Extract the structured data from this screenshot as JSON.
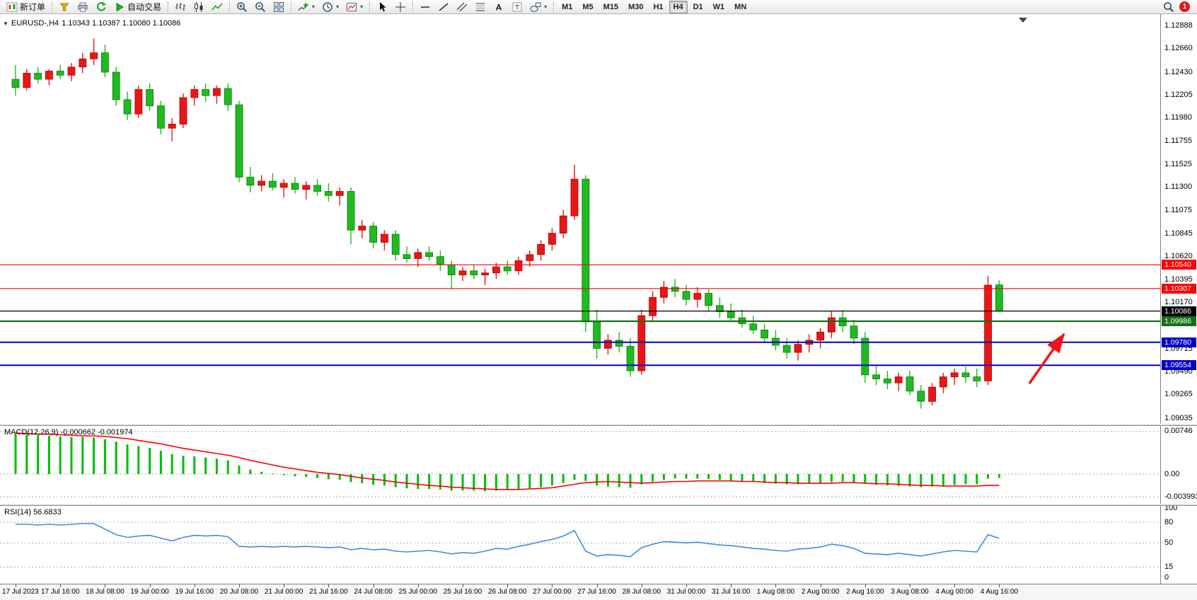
{
  "toolbar": {
    "items": [
      {
        "type": "button",
        "name": "new-order-button",
        "icon": "new-order-icon",
        "label": "新订单"
      },
      {
        "type": "sep"
      },
      {
        "type": "button",
        "name": "metaeditor-button",
        "icon": "metaeditor-icon"
      },
      {
        "type": "button",
        "name": "print-button",
        "icon": "print-icon"
      },
      {
        "type": "button",
        "name": "refresh-button",
        "icon": "refresh-icon"
      },
      {
        "type": "button",
        "name": "autotrading-button",
        "icon": "play-icon",
        "label": "自动交易"
      },
      {
        "type": "sep"
      },
      {
        "type": "button",
        "name": "bar-chart-button",
        "icon": "bar-chart-icon"
      },
      {
        "type": "button",
        "name": "candlestick-chart-button",
        "icon": "candlestick-icon"
      },
      {
        "type": "button",
        "name": "line-chart-button",
        "icon": "line-chart-icon"
      },
      {
        "type": "sep"
      },
      {
        "type": "button",
        "name": "zoom-in-button",
        "icon": "zoom-in-icon"
      },
      {
        "type": "button",
        "name": "zoom-out-button",
        "icon": "zoom-out-icon"
      },
      {
        "type": "button",
        "name": "tile-windows-button",
        "icon": "tile-windows-icon"
      },
      {
        "type": "sep"
      },
      {
        "type": "button",
        "name": "indicators-button",
        "icon": "indicators-icon",
        "caret": true
      },
      {
        "type": "button",
        "name": "periods-button",
        "icon": "clock-icon",
        "caret": true
      },
      {
        "type": "button",
        "name": "templates-button",
        "icon": "template-icon",
        "caret": true
      },
      {
        "type": "sep"
      },
      {
        "type": "button",
        "name": "cursor-button",
        "icon": "cursor-icon"
      },
      {
        "type": "button",
        "name": "crosshair-button",
        "icon": "crosshair-icon"
      },
      {
        "type": "sep"
      },
      {
        "type": "button",
        "name": "horizontal-line-button",
        "icon": "horizontal-line-icon"
      },
      {
        "type": "button",
        "name": "trendline-button",
        "icon": "trendline-icon"
      },
      {
        "type": "button",
        "name": "channel-button",
        "icon": "channel-icon"
      },
      {
        "type": "button",
        "name": "fibonacci-button",
        "icon": "fibonacci-icon"
      },
      {
        "type": "button",
        "name": "text-button",
        "icon": "text-a-icon"
      },
      {
        "type": "button",
        "name": "label-button",
        "icon": "text-t-icon"
      },
      {
        "type": "button",
        "name": "shapes-button",
        "icon": "shapes-icon",
        "caret": true
      },
      {
        "type": "sep"
      }
    ],
    "timeframes": [
      "M1",
      "M5",
      "M15",
      "M30",
      "H1",
      "H4",
      "D1",
      "W1",
      "MN"
    ],
    "active_timeframe": "H4",
    "notification_count": "1"
  },
  "chart": {
    "title_symbol": "EURUSD-,H4",
    "title_ohlc": "1.10343 1.10387 1.10080 1.10086"
  },
  "price_axis": {
    "ticks": [
      "1.12888",
      "1.12660",
      "1.12430",
      "1.12205",
      "1.11980",
      "1.11755",
      "1.11525",
      "1.11300",
      "1.11075",
      "1.10845",
      "1.10620",
      "1.10395",
      "1.10170",
      "1.09715",
      "1.09490",
      "1.09265",
      "1.09035"
    ]
  },
  "hlines": [
    {
      "price": 1.1054,
      "label": "1.10540",
      "color": "#FF0000",
      "width": 1.2
    },
    {
      "price": 1.10307,
      "label": "1.10307",
      "color": "#FF0000",
      "width": 1.2
    },
    {
      "price": 1.10086,
      "label": "1.10086",
      "color": "#000000",
      "width": 1.2
    },
    {
      "price": 1.09986,
      "label": "1.09986",
      "color": "#167016",
      "width": 2.2
    },
    {
      "price": 1.0978,
      "label": "1.09780",
      "color": "#0000C8",
      "width": 2
    },
    {
      "price": 1.09554,
      "label": "1.09554",
      "color": "#0000C8",
      "width": 2
    }
  ],
  "indicators": {
    "macd_label": "MACD(12,26,9) -0.000662 -0.001974",
    "macd_axis": [
      "0.00746",
      "0.00",
      "-0.003993"
    ],
    "rsi_label": "RSI(14) 56.6833",
    "rsi_axis": [
      "100",
      "80",
      "50",
      "15",
      "0"
    ],
    "rsi_levels": [
      80,
      50,
      15
    ]
  },
  "chart_data": {
    "type": "candlestick",
    "title": "EURUSD-,H4",
    "ohlc_current": {
      "open": 1.10343,
      "high": 1.10387,
      "low": 1.1008,
      "close": 1.10086
    },
    "up_color": "#E81717",
    "down_color": "#1FBB1F",
    "ylim": [
      1.09035,
      1.12888
    ],
    "bars_per_label": 4,
    "x_labels": [
      "17 Jul 2023",
      "17 Jul 16:00",
      "18 Jul 08:00",
      "19 Jul 00:00",
      "19 Jul 16:00",
      "20 Jul 08:00",
      "21 Jul 00:00",
      "21 Jul 16:00",
      "24 Jul 08:00",
      "25 Jul 00:00",
      "25 Jul 16:00",
      "26 Jul 08:00",
      "27 Jul 00:00",
      "27 Jul 16:00",
      "28 Jul 08:00",
      "31 Jul 00:00",
      "31 Jul 16:00",
      "1 Aug 08:00",
      "2 Aug 00:00",
      "2 Aug 16:00",
      "3 Aug 08:00",
      "4 Aug 00:00",
      "4 Aug 16:00"
    ],
    "ohlc": [
      [
        1.1236,
        1.125,
        1.122,
        1.1228
      ],
      [
        1.1228,
        1.1246,
        1.1225,
        1.1242
      ],
      [
        1.1242,
        1.1248,
        1.1232,
        1.1236
      ],
      [
        1.1236,
        1.1246,
        1.123,
        1.1244
      ],
      [
        1.1244,
        1.125,
        1.1236,
        1.124
      ],
      [
        1.124,
        1.1252,
        1.1234,
        1.1248
      ],
      [
        1.1248,
        1.1262,
        1.1242,
        1.1256
      ],
      [
        1.1256,
        1.1276,
        1.125,
        1.1262
      ],
      [
        1.1262,
        1.127,
        1.1238,
        1.1243
      ],
      [
        1.1243,
        1.1248,
        1.121,
        1.1216
      ],
      [
        1.1216,
        1.1224,
        1.1196,
        1.1202
      ],
      [
        1.1202,
        1.123,
        1.1198,
        1.1226
      ],
      [
        1.1226,
        1.1232,
        1.1205,
        1.121
      ],
      [
        1.121,
        1.1215,
        1.1182,
        1.1188
      ],
      [
        1.1188,
        1.1198,
        1.1175,
        1.1192
      ],
      [
        1.1192,
        1.1222,
        1.1188,
        1.1218
      ],
      [
        1.1218,
        1.123,
        1.121,
        1.1226
      ],
      [
        1.1226,
        1.1232,
        1.1214,
        1.122
      ],
      [
        1.122,
        1.123,
        1.1212,
        1.1227
      ],
      [
        1.1227,
        1.1232,
        1.1205,
        1.1211
      ],
      [
        1.1211,
        1.1215,
        1.1135,
        1.114
      ],
      [
        1.114,
        1.115,
        1.1125,
        1.1132
      ],
      [
        1.1132,
        1.1142,
        1.1126,
        1.1136
      ],
      [
        1.1136,
        1.1144,
        1.1127,
        1.113
      ],
      [
        1.113,
        1.1138,
        1.112,
        1.1134
      ],
      [
        1.1134,
        1.114,
        1.1124,
        1.1128
      ],
      [
        1.1128,
        1.1136,
        1.1118,
        1.1132
      ],
      [
        1.1132,
        1.1138,
        1.1122,
        1.1126
      ],
      [
        1.1126,
        1.1134,
        1.1116,
        1.1122
      ],
      [
        1.1122,
        1.113,
        1.1112,
        1.1126
      ],
      [
        1.1126,
        1.113,
        1.1074,
        1.1088
      ],
      [
        1.1088,
        1.1098,
        1.108,
        1.1092
      ],
      [
        1.1092,
        1.1096,
        1.107,
        1.1076
      ],
      [
        1.1076,
        1.1088,
        1.1068,
        1.1084
      ],
      [
        1.1084,
        1.1088,
        1.1058,
        1.1064
      ],
      [
        1.1064,
        1.1072,
        1.1056,
        1.106
      ],
      [
        1.106,
        1.107,
        1.1052,
        1.1066
      ],
      [
        1.1066,
        1.1072,
        1.1058,
        1.1062
      ],
      [
        1.1062,
        1.1068,
        1.1048,
        1.1054
      ],
      [
        1.1054,
        1.1058,
        1.103,
        1.1044
      ],
      [
        1.1044,
        1.1052,
        1.1038,
        1.1048
      ],
      [
        1.1048,
        1.1054,
        1.104,
        1.1044
      ],
      [
        1.1044,
        1.105,
        1.1034,
        1.1046
      ],
      [
        1.1046,
        1.1056,
        1.104,
        1.1052
      ],
      [
        1.1052,
        1.1058,
        1.1044,
        1.1048
      ],
      [
        1.1048,
        1.1062,
        1.1044,
        1.1058
      ],
      [
        1.1058,
        1.1068,
        1.1052,
        1.1064
      ],
      [
        1.1064,
        1.1078,
        1.1058,
        1.1074
      ],
      [
        1.1074,
        1.109,
        1.1068,
        1.1085
      ],
      [
        1.1085,
        1.1108,
        1.108,
        1.1102
      ],
      [
        1.1102,
        1.1152,
        1.1098,
        1.1138
      ],
      [
        1.1138,
        1.1142,
        1.0988,
        1.0998
      ],
      [
        1.0998,
        1.101,
        1.0962,
        1.0972
      ],
      [
        1.0972,
        1.0986,
        1.0966,
        1.098
      ],
      [
        1.098,
        1.0988,
        1.0968,
        1.0974
      ],
      [
        1.0974,
        1.0982,
        1.0944,
        1.095
      ],
      [
        1.095,
        1.101,
        1.0946,
        1.1004
      ],
      [
        1.1004,
        1.1028,
        1.0998,
        1.1022
      ],
      [
        1.1022,
        1.1038,
        1.1016,
        1.1032
      ],
      [
        1.1032,
        1.104,
        1.1022,
        1.1028
      ],
      [
        1.1028,
        1.1034,
        1.1014,
        1.102
      ],
      [
        1.102,
        1.1032,
        1.1012,
        1.1026
      ],
      [
        1.1026,
        1.103,
        1.1008,
        1.1014
      ],
      [
        1.1014,
        1.1022,
        1.1002,
        1.1008
      ],
      [
        1.1008,
        1.1016,
        1.0998,
        1.1002
      ],
      [
        1.1002,
        1.101,
        1.0992,
        1.0996
      ],
      [
        1.0996,
        1.1004,
        1.0986,
        1.099
      ],
      [
        1.099,
        1.0996,
        1.0978,
        1.0982
      ],
      [
        1.0982,
        1.099,
        1.097,
        1.0975
      ],
      [
        1.0975,
        1.0982,
        1.0962,
        1.0968
      ],
      [
        1.0968,
        1.098,
        1.096,
        1.0976
      ],
      [
        1.0976,
        1.0986,
        1.0968,
        1.098
      ],
      [
        1.098,
        1.0992,
        1.0972,
        1.0988
      ],
      [
        1.0988,
        1.1008,
        1.0982,
        1.1002
      ],
      [
        1.1002,
        1.101,
        1.0988,
        1.0994
      ],
      [
        1.0994,
        1.1,
        1.0976,
        1.0982
      ],
      [
        1.0982,
        1.0988,
        1.0938,
        1.0946
      ],
      [
        1.0946,
        1.0956,
        1.0936,
        1.0942
      ],
      [
        1.0942,
        1.095,
        1.0932,
        1.0938
      ],
      [
        1.0938,
        1.0948,
        1.093,
        1.0944
      ],
      [
        1.0944,
        1.095,
        1.0926,
        1.093
      ],
      [
        1.093,
        1.0936,
        1.0913,
        1.092
      ],
      [
        1.092,
        1.0938,
        1.0916,
        1.0934
      ],
      [
        1.0934,
        1.0948,
        1.0928,
        1.0944
      ],
      [
        1.0944,
        1.0952,
        1.0936,
        1.0948
      ],
      [
        1.0948,
        1.0954,
        1.0938,
        1.0944
      ],
      [
        1.0944,
        1.0952,
        1.0934,
        1.094
      ],
      [
        1.094,
        1.1043,
        1.0936,
        1.1034
      ],
      [
        1.10343,
        1.10387,
        1.1008,
        1.10086
      ]
    ],
    "macd": {
      "type": "bar+line",
      "histogram_color": "#00BE00",
      "signal_color": "#FF0000",
      "ylim": [
        -0.003993,
        0.00746
      ],
      "histogram": [
        0.007,
        0.0069,
        0.0068,
        0.0067,
        0.0066,
        0.0065,
        0.0065,
        0.0064,
        0.0061,
        0.0057,
        0.0052,
        0.0049,
        0.0046,
        0.0041,
        0.0035,
        0.0032,
        0.0031,
        0.0029,
        0.0027,
        0.0024,
        0.0015,
        0.0008,
        0.0004,
        0.0001,
        -0.0002,
        -0.0004,
        -0.0005,
        -0.0007,
        -0.0009,
        -0.001,
        -0.0014,
        -0.0016,
        -0.0019,
        -0.002,
        -0.0023,
        -0.0025,
        -0.0026,
        -0.0026,
        -0.0027,
        -0.0029,
        -0.0029,
        -0.0029,
        -0.003,
        -0.0029,
        -0.0028,
        -0.0027,
        -0.0025,
        -0.0023,
        -0.002,
        -0.0016,
        -0.001,
        -0.0012,
        -0.002,
        -0.0022,
        -0.0023,
        -0.0024,
        -0.0018,
        -0.0013,
        -0.001,
        -0.0008,
        -0.0008,
        -0.0008,
        -0.0009,
        -0.001,
        -0.0011,
        -0.0013,
        -0.0014,
        -0.0016,
        -0.0017,
        -0.0018,
        -0.0018,
        -0.0017,
        -0.0016,
        -0.0014,
        -0.0013,
        -0.0014,
        -0.0017,
        -0.0019,
        -0.002,
        -0.0021,
        -0.0022,
        -0.0023,
        -0.0022,
        -0.0021,
        -0.0019,
        -0.0018,
        -0.0018,
        -0.0008,
        -0.000662
      ],
      "signal": [
        0.0072,
        0.0071,
        0.007,
        0.007,
        0.0069,
        0.0068,
        0.0067,
        0.0067,
        0.0066,
        0.0064,
        0.0062,
        0.0059,
        0.0056,
        0.0053,
        0.0049,
        0.0045,
        0.0042,
        0.0039,
        0.0036,
        0.0033,
        0.0029,
        0.0024,
        0.002,
        0.0016,
        0.0012,
        0.0009,
        0.0006,
        0.0003,
        0.0001,
        -0.0001,
        -0.0004,
        -0.0007,
        -0.0009,
        -0.0011,
        -0.0014,
        -0.0016,
        -0.0018,
        -0.002,
        -0.0021,
        -0.0023,
        -0.0024,
        -0.0025,
        -0.0026,
        -0.0027,
        -0.0027,
        -0.0027,
        -0.0026,
        -0.0025,
        -0.0024,
        -0.0021,
        -0.0018,
        -0.0015,
        -0.0014,
        -0.0013,
        -0.0014,
        -0.0015,
        -0.0016,
        -0.0015,
        -0.0014,
        -0.0013,
        -0.0013,
        -0.0012,
        -0.0012,
        -0.0012,
        -0.0012,
        -0.0013,
        -0.0013,
        -0.0014,
        -0.0015,
        -0.0015,
        -0.0016,
        -0.0016,
        -0.0016,
        -0.0016,
        -0.0015,
        -0.0015,
        -0.0016,
        -0.0017,
        -0.0017,
        -0.0018,
        -0.0019,
        -0.002,
        -0.002,
        -0.0021,
        -0.0021,
        -0.0021,
        -0.0021,
        -0.002,
        -0.001974
      ]
    },
    "rsi": {
      "type": "line",
      "color": "#3E8EDE",
      "ylim": [
        0,
        100
      ],
      "current": 56.6833,
      "values": [
        77,
        77,
        76,
        77,
        76,
        77,
        78,
        78,
        70,
        62,
        58,
        60,
        61,
        57,
        53,
        58,
        61,
        60,
        61,
        59,
        45,
        44,
        45,
        44,
        45,
        44,
        45,
        44,
        43,
        44,
        40,
        42,
        40,
        41,
        38,
        37,
        38,
        39,
        37,
        34,
        36,
        35,
        38,
        42,
        41,
        45,
        48,
        52,
        55,
        60,
        68,
        38,
        31,
        33,
        32,
        30,
        43,
        48,
        52,
        51,
        50,
        51,
        49,
        47,
        46,
        44,
        42,
        41,
        39,
        38,
        41,
        42,
        44,
        48,
        46,
        42,
        35,
        34,
        33,
        35,
        33,
        31,
        34,
        37,
        39,
        38,
        37,
        62,
        56.68
      ]
    }
  },
  "annotations": {
    "arrow_color": "#F01414"
  }
}
